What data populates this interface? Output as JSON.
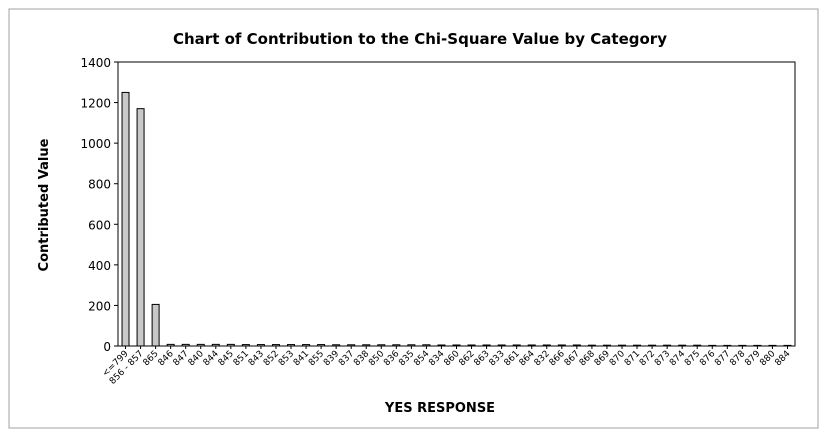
{
  "chart_data": {
    "type": "bar",
    "title": "Chart of Contribution to the Chi-Square Value by Category",
    "xlabel": "YES RESPONSE",
    "ylabel": "Contributed Value",
    "categories": [
      "<=799",
      "856 - 857",
      "865",
      "846",
      "847",
      "840",
      "844",
      "845",
      "851",
      "843",
      "852",
      "853",
      "841",
      "855",
      "839",
      "837",
      "838",
      "850",
      "836",
      "835",
      "854",
      "834",
      "860",
      "862",
      "863",
      "833",
      "861",
      "864",
      "832",
      "866",
      "867",
      "868",
      "869",
      "870",
      "871",
      "872",
      "873",
      "874",
      "875",
      "876",
      "877",
      "878",
      "879",
      "880",
      "884"
    ],
    "values": [
      1250,
      1170,
      205,
      8,
      8,
      8,
      8,
      8,
      7,
      7,
      7,
      7,
      7,
      7,
      6,
      6,
      6,
      6,
      6,
      6,
      6,
      5,
      5,
      5,
      5,
      5,
      5,
      5,
      5,
      5,
      5,
      4,
      4,
      4,
      4,
      4,
      4,
      4,
      4,
      3,
      3,
      3,
      3,
      3,
      3
    ],
    "color": "#c8c8c8",
    "ylim": [
      0,
      1400
    ],
    "yticks": [
      0,
      200,
      400,
      600,
      800,
      1000,
      1200,
      1400
    ]
  }
}
